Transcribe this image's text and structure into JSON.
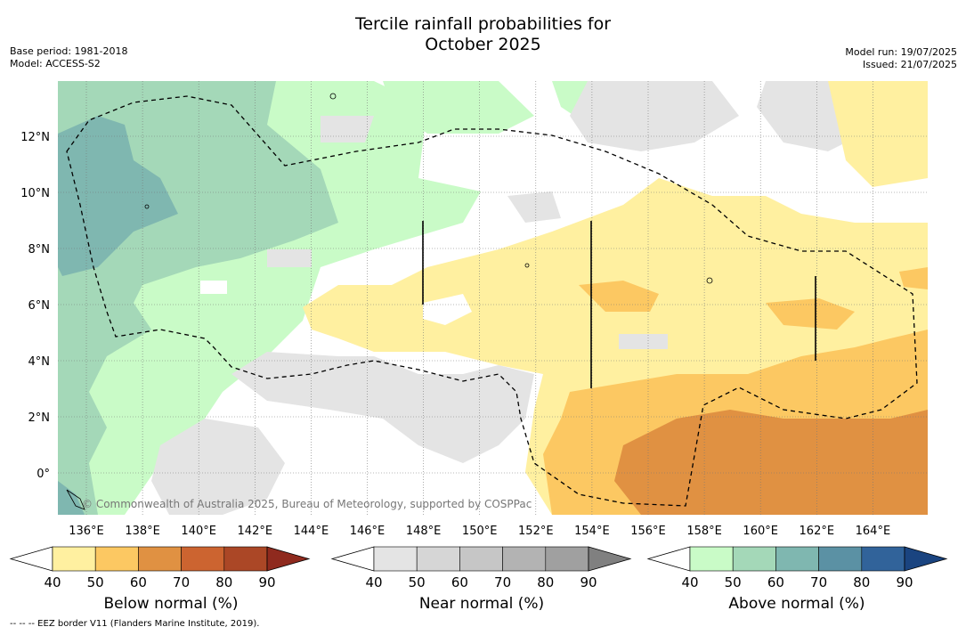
{
  "header": {
    "title_line1": "Tercile rainfall probabilities for",
    "title_line2": "October 2025",
    "base_period": "Base period: 1981-2018",
    "model": "Model: ACCESS-S2",
    "model_run": "Model run: 19/07/2025",
    "issued": "Issued: 21/07/2025"
  },
  "map": {
    "lon_labels": [
      "136°E",
      "138°E",
      "140°E",
      "142°E",
      "144°E",
      "146°E",
      "148°E",
      "150°E",
      "152°E",
      "154°E",
      "156°E",
      "158°E",
      "160°E",
      "162°E",
      "164°E"
    ],
    "lat_labels": [
      "12°N",
      "10°N",
      "8°N",
      "6°N",
      "4°N",
      "2°N",
      "0°"
    ],
    "credit": "© Commonwealth of Australia 2025, Bureau of Meteorology, supported by COSPPac"
  },
  "colorbars": [
    {
      "name": "below",
      "label": "Below normal (%)",
      "ticks": [
        "40",
        "50",
        "60",
        "70",
        "80",
        "90"
      ],
      "colors": [
        "#fff0a0",
        "#fcc862",
        "#e09142",
        "#cc6430",
        "#ab4726",
        "#8f2a1e"
      ]
    },
    {
      "name": "near",
      "label": "Near normal (%)",
      "ticks": [
        "40",
        "50",
        "60",
        "70",
        "80",
        "90"
      ],
      "colors": [
        "#e4e4e4",
        "#d6d6d6",
        "#c6c6c6",
        "#b3b3b3",
        "#a0a0a0",
        "#808080"
      ]
    },
    {
      "name": "above",
      "label": "Above normal (%)",
      "ticks": [
        "40",
        "50",
        "60",
        "70",
        "80",
        "90"
      ],
      "colors": [
        "#c9fbc7",
        "#a4d8b8",
        "#7fb7b0",
        "#5b91a4",
        "#31639a",
        "#1a4480"
      ]
    }
  ],
  "legend": {
    "footnote": "--  --  -- EEZ border V11 (Flanders Marine Institute, 2019)."
  }
}
